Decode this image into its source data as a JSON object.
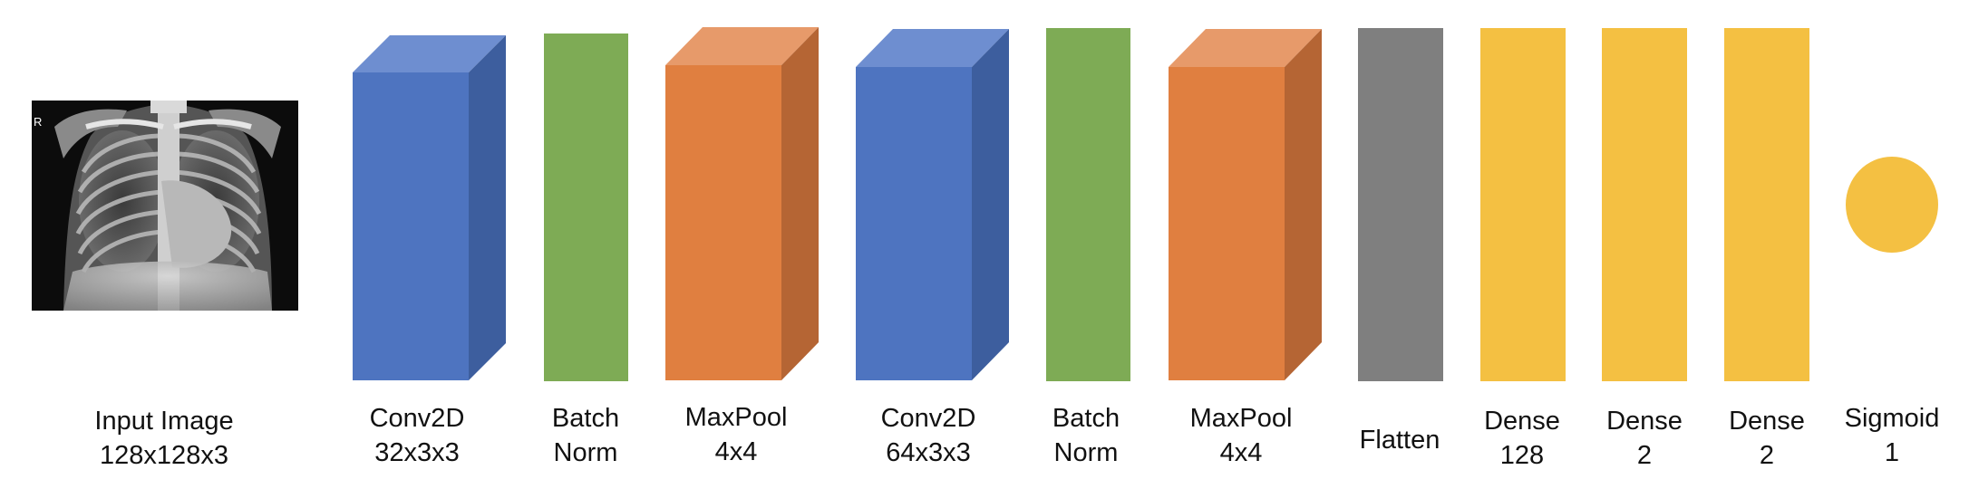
{
  "input": {
    "label_line1": "Input Image",
    "label_line2": "128x128x3",
    "marker": "R",
    "image_desc": "chest-xray-image"
  },
  "layers": [
    {
      "id": "conv2d-1",
      "line1": "Conv2D",
      "line2": "32x3x3",
      "color": "#4E74C0"
    },
    {
      "id": "batchnorm-1",
      "line1": "Batch",
      "line2": "Norm",
      "color": "#7EAB55"
    },
    {
      "id": "maxpool-1",
      "line1": "MaxPool",
      "line2": "4x4",
      "color": "#E07F40"
    },
    {
      "id": "conv2d-2",
      "line1": "Conv2D",
      "line2": "64x3x3",
      "color": "#4E74C0"
    },
    {
      "id": "batchnorm-2",
      "line1": "Batch",
      "line2": "Norm",
      "color": "#7EAB55"
    },
    {
      "id": "maxpool-2",
      "line1": "MaxPool",
      "line2": "4x4",
      "color": "#E07F40"
    },
    {
      "id": "flatten",
      "line1": "Flatten",
      "line2": "",
      "color": "#7F7F7F"
    },
    {
      "id": "dense-1",
      "line1": "Dense",
      "line2": "128",
      "color": "#F4C042"
    },
    {
      "id": "dense-2",
      "line1": "Dense",
      "line2": "2",
      "color": "#F4C042"
    },
    {
      "id": "dense-3",
      "line1": "Dense",
      "line2": "2",
      "color": "#F4C042"
    },
    {
      "id": "sigmoid",
      "line1": "Sigmoid",
      "line2": "1",
      "color": "#F4C042"
    }
  ]
}
